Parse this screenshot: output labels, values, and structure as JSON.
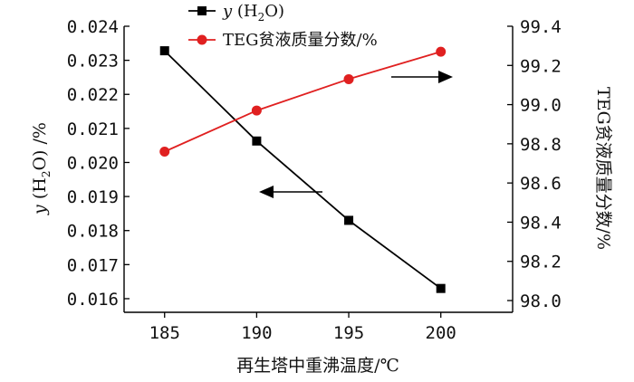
{
  "chart_data": {
    "type": "line",
    "x": [
      185,
      190,
      195,
      200
    ],
    "xlabel": "再生塔中重沸温度/℃",
    "xticks": [
      "185",
      "190",
      "195",
      "200"
    ],
    "xlim": [
      182.8,
      203.9
    ],
    "ylabel_left": {
      "var": "y",
      "open": " (H",
      "sub": "2",
      "close": "O) /%"
    },
    "ylabel_right": "TEG贫液质量分数/%",
    "yticks_left": [
      "0.024",
      "0.023",
      "0.022",
      "0.021",
      "0.020",
      "0.019",
      "0.018",
      "0.017",
      "0.016"
    ],
    "yticks_right": [
      "99.4",
      "99.2",
      "99.0",
      "98.8",
      "98.6",
      "98.4",
      "98.2",
      "98.0"
    ],
    "ylim_left": [
      0.0156,
      0.024
    ],
    "ylim_right": [
      97.94,
      99.4
    ],
    "series": [
      {
        "name": {
          "var": "y",
          "open": " (H",
          "sub": "2",
          "close": "O)"
        },
        "axis": "left",
        "marker": "square",
        "color": "#000000",
        "values": [
          0.02328,
          0.02063,
          0.0183,
          0.0163
        ]
      },
      {
        "name": "TEG贫液质量分数/%",
        "axis": "right",
        "marker": "circle",
        "color": "#e02020",
        "values": [
          98.76,
          98.97,
          99.13,
          99.27
        ]
      }
    ],
    "annotations": [
      {
        "type": "arrow",
        "direction": "left",
        "meaning": "series y(H2O) uses left axis"
      },
      {
        "type": "arrow",
        "direction": "right",
        "meaning": "TEG series uses right axis"
      }
    ],
    "grid": false,
    "legend_position": "top-center"
  }
}
